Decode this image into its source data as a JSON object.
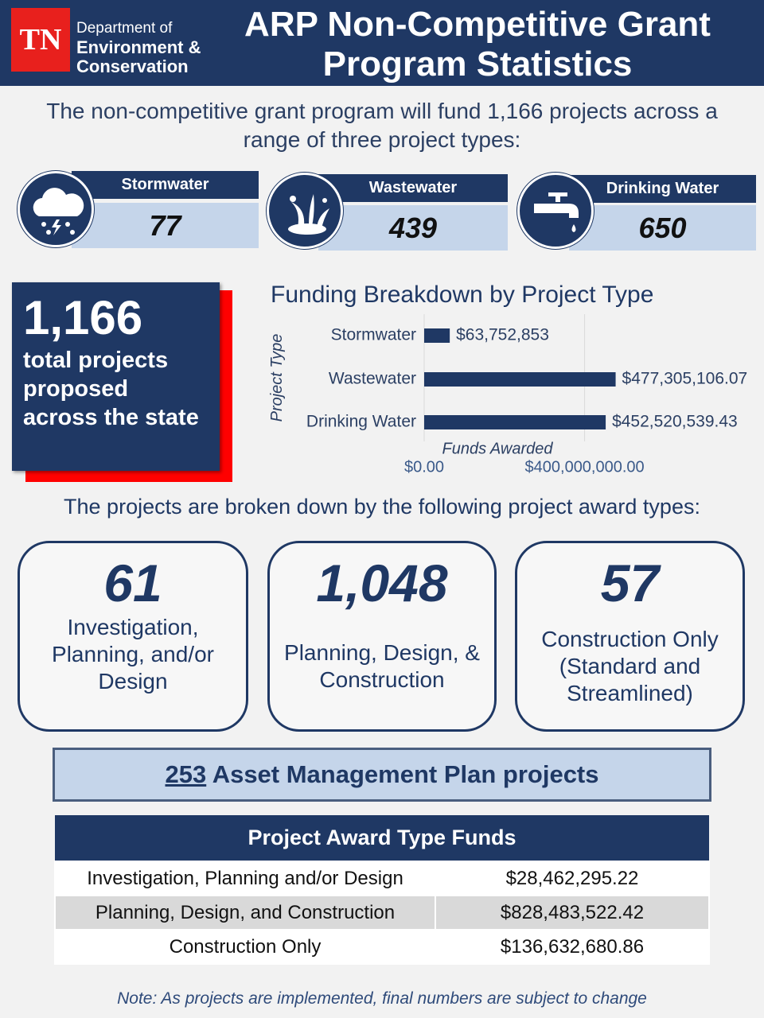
{
  "header": {
    "logo": "TN",
    "department": [
      "Department of",
      "Environment &",
      "Conservation"
    ],
    "title": "ARP Non-Competitive Grant Program Statistics"
  },
  "intro": "The non-competitive grant program will fund 1,166 projects across a range of three project types:",
  "project_types": [
    {
      "name": "Stormwater",
      "count": 77
    },
    {
      "name": "Wastewater",
      "count": 439
    },
    {
      "name": "Drinking Water",
      "count": 650
    }
  ],
  "total": {
    "count": "1,166",
    "text": "total projects proposed across the state"
  },
  "chart_data": {
    "type": "hbar",
    "title": "Funding Breakdown by Project Type",
    "y_label": "Project Type",
    "x_label": "Funds Awarded",
    "categories": [
      "Stormwater",
      "Wastewater",
      "Drinking Water"
    ],
    "values": [
      63752853,
      477305106.07,
      452520539.43
    ],
    "value_labels": [
      "$63,752,853",
      "$477,305,106.07",
      "$452,520,539.43"
    ],
    "color": "#1f3864",
    "xlim": [
      0,
      500000000
    ],
    "xticks": [
      {
        "value": 0,
        "label": "$0.00"
      },
      {
        "value": 400000000,
        "label": "$400,000,000.00"
      }
    ],
    "grid": true
  },
  "award_intro": "The projects are broken down by the following project award types:",
  "award_types": [
    {
      "count": "61",
      "name": "Investigation, Planning, and/or Design"
    },
    {
      "count": "1,048",
      "name": "Planning, Design, & Construction"
    },
    {
      "count": "57",
      "name": "Construction Only (Standard and Streamlined)"
    }
  ],
  "asset": {
    "count": "253",
    "text": "Asset Management Plan projects"
  },
  "table": {
    "header": "Project Award Type Funds",
    "rows": [
      [
        "Investigation, Planning and/or Design",
        "$28,462,295.22"
      ],
      [
        "Planning, Design, and Construction",
        "$828,483,522.42"
      ],
      [
        "Construction Only",
        "$136,632,680.86"
      ]
    ]
  },
  "note": "Note: As projects are implemented, final numbers are subject to change"
}
